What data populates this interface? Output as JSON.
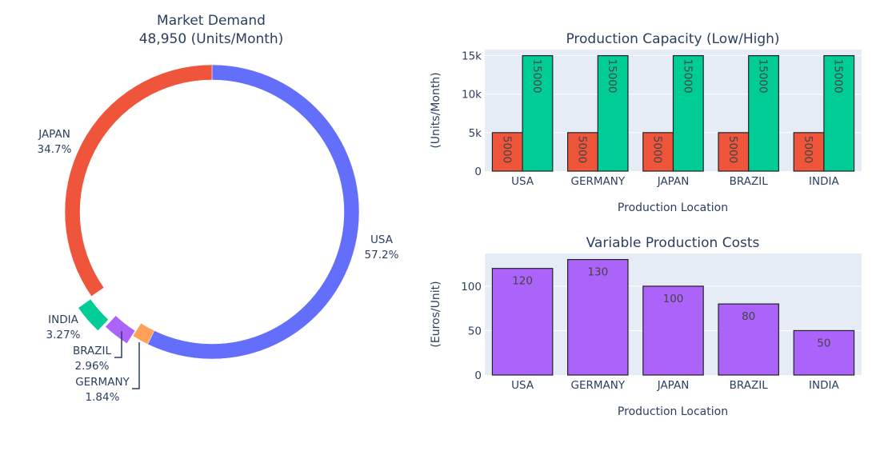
{
  "chart_data": [
    {
      "type": "pie",
      "title": "Market Demand",
      "subtitle": "48,950 (Units/Month)",
      "hole": true,
      "direction": "clockwise",
      "labels": [
        "USA",
        "GERMANY",
        "BRAZIL",
        "INDIA",
        "JAPAN"
      ],
      "values": [
        28000,
        900,
        1450,
        1600,
        17000
      ],
      "percent_text": [
        "57.2%",
        "1.84%",
        "2.96%",
        "3.27%",
        "34.7%"
      ],
      "pulled": [
        false,
        false,
        true,
        true,
        false
      ],
      "colors": [
        "#636efa",
        "#ffa15a",
        "#ab63fa",
        "#00cc96",
        "#ef553b"
      ]
    },
    {
      "type": "bar",
      "title": "Production Capacity (Low/High)",
      "xlabel": "Production Location",
      "ylabel": "(Units/Month)",
      "categories": [
        "USA",
        "GERMANY",
        "JAPAN",
        "BRAZIL",
        "INDIA"
      ],
      "series": [
        {
          "name": "Low",
          "values": [
            5000,
            5000,
            5000,
            5000,
            5000
          ],
          "color": "#ef553b",
          "text": [
            "5000",
            "5000",
            "5000",
            "5000",
            "5000"
          ]
        },
        {
          "name": "High",
          "values": [
            15000,
            15000,
            15000,
            15000,
            15000
          ],
          "color": "#00cc96",
          "text": [
            "15000",
            "15000",
            "15000",
            "15000",
            "15000"
          ]
        }
      ],
      "yticks": [
        0,
        5000,
        10000,
        15000
      ],
      "ytick_labels": [
        "0",
        "5k",
        "10k",
        "15k"
      ],
      "ylim": [
        0,
        15789
      ],
      "grid": true
    },
    {
      "type": "bar",
      "title": "Variable Production Costs",
      "xlabel": "Production Location",
      "ylabel": "(Euros/Unit)",
      "categories": [
        "USA",
        "GERMANY",
        "JAPAN",
        "BRAZIL",
        "INDIA"
      ],
      "series": [
        {
          "name": "Cost",
          "values": [
            120,
            130,
            100,
            80,
            50
          ],
          "color": "#ab63fa",
          "text": [
            "120",
            "130",
            "100",
            "80",
            "50"
          ]
        }
      ],
      "yticks": [
        0,
        50,
        100
      ],
      "ytick_labels": [
        "0",
        "50",
        "100"
      ],
      "ylim": [
        0,
        136.8
      ],
      "grid": true
    }
  ]
}
